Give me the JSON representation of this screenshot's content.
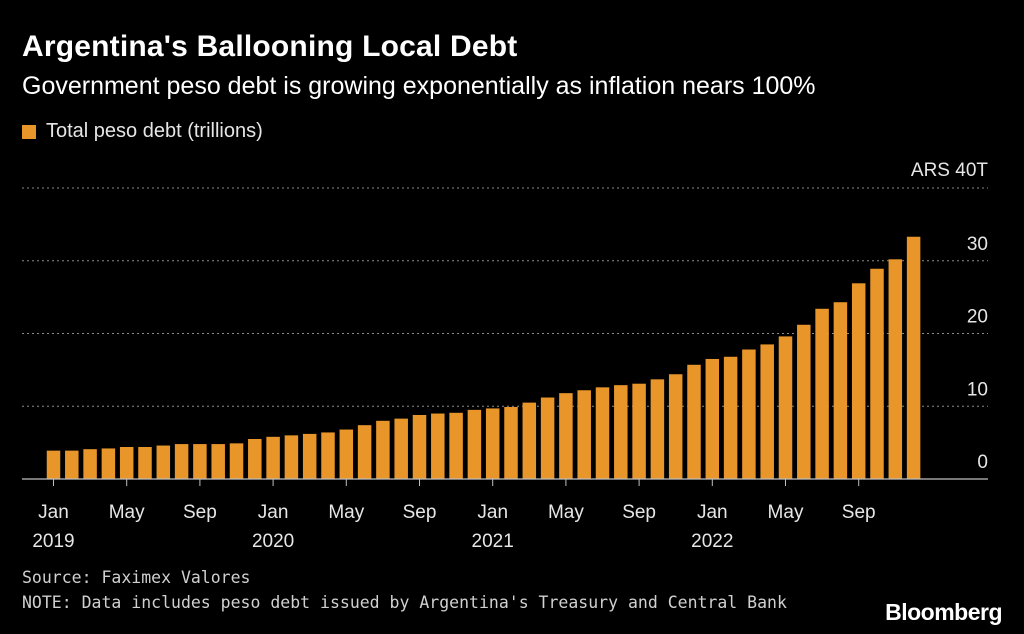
{
  "header": {
    "title": "Argentina's Ballooning Local Debt",
    "subtitle": "Government peso debt is growing exponentially as inflation nears 100%"
  },
  "legend": {
    "label": "Total peso debt (trillions)",
    "color": "#e8952a"
  },
  "footer": {
    "source": "Source: Faximex Valores",
    "note": "NOTE: Data includes peso debt issued by Argentina's Treasury and Central Bank",
    "brand": "Bloomberg"
  },
  "colors": {
    "background": "#000000",
    "bar": "#e8952a",
    "grid": "#8a8a8a",
    "text": "#e6e6e6"
  },
  "chart_data": {
    "type": "bar",
    "title": "Argentina's Ballooning Local Debt",
    "subtitle": "Government peso debt is growing exponentially as inflation nears 100%",
    "xlabel": "",
    "ylabel": "",
    "ylim": [
      0,
      40
    ],
    "y_ticks": [
      {
        "value": 0,
        "label": "0"
      },
      {
        "value": 10,
        "label": "10"
      },
      {
        "value": 20,
        "label": "20"
      },
      {
        "value": 30,
        "label": "30"
      },
      {
        "value": 40,
        "label": "ARS 40T"
      }
    ],
    "x_ticks": [
      {
        "index": 0,
        "label": "Jan",
        "year": "2019"
      },
      {
        "index": 4,
        "label": "May",
        "year": ""
      },
      {
        "index": 8,
        "label": "Sep",
        "year": ""
      },
      {
        "index": 12,
        "label": "Jan",
        "year": "2020"
      },
      {
        "index": 16,
        "label": "May",
        "year": ""
      },
      {
        "index": 20,
        "label": "Sep",
        "year": ""
      },
      {
        "index": 24,
        "label": "Jan",
        "year": "2021"
      },
      {
        "index": 28,
        "label": "May",
        "year": ""
      },
      {
        "index": 32,
        "label": "Sep",
        "year": ""
      },
      {
        "index": 36,
        "label": "Jan",
        "year": "2022"
      },
      {
        "index": 40,
        "label": "May",
        "year": ""
      },
      {
        "index": 44,
        "label": "Sep",
        "year": ""
      }
    ],
    "grid": true,
    "grid_style": "dotted",
    "series": [
      {
        "name": "Total peso debt (trillions)",
        "categories": [
          "Jan 2019",
          "Feb 2019",
          "Mar 2019",
          "Apr 2019",
          "May 2019",
          "Jun 2019",
          "Jul 2019",
          "Aug 2019",
          "Sep 2019",
          "Oct 2019",
          "Nov 2019",
          "Dec 2019",
          "Jan 2020",
          "Feb 2020",
          "Mar 2020",
          "Apr 2020",
          "May 2020",
          "Jun 2020",
          "Jul 2020",
          "Aug 2020",
          "Sep 2020",
          "Oct 2020",
          "Nov 2020",
          "Dec 2020",
          "Jan 2021",
          "Feb 2021",
          "Mar 2021",
          "Apr 2021",
          "May 2021",
          "Jun 2021",
          "Jul 2021",
          "Aug 2021",
          "Sep 2021",
          "Oct 2021",
          "Nov 2021",
          "Dec 2021",
          "Jan 2022",
          "Feb 2022",
          "Mar 2022",
          "Apr 2022",
          "May 2022",
          "Jun 2022",
          "Jul 2022",
          "Aug 2022",
          "Sep 2022",
          "Oct 2022",
          "Nov 2022",
          "Dec 2022"
        ],
        "values": [
          3.9,
          3.9,
          4.1,
          4.2,
          4.4,
          4.4,
          4.6,
          4.8,
          4.8,
          4.8,
          4.9,
          5.5,
          5.8,
          6.0,
          6.2,
          6.4,
          6.8,
          7.4,
          8.0,
          8.3,
          8.8,
          9.0,
          9.1,
          9.5,
          9.7,
          9.9,
          10.5,
          11.2,
          11.8,
          12.2,
          12.6,
          12.9,
          13.1,
          13.7,
          14.4,
          15.7,
          16.5,
          16.8,
          17.8,
          18.5,
          19.6,
          21.2,
          23.4,
          24.3,
          26.9,
          28.9,
          30.2,
          33.3
        ]
      }
    ]
  }
}
